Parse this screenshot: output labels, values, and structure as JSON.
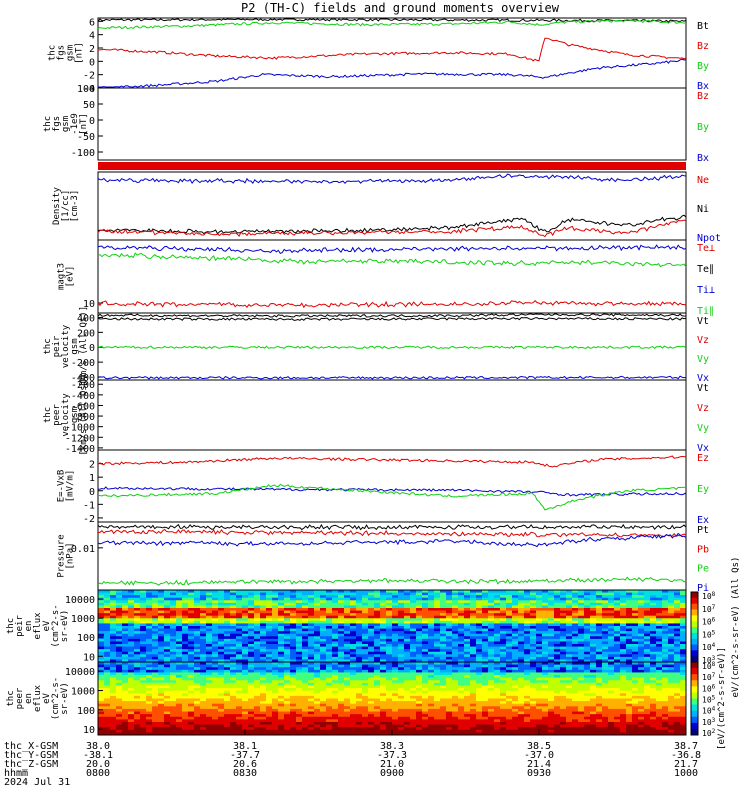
{
  "title": "P2 (TH-C) fields and ground moments overview",
  "colors": {
    "black": "#000000",
    "red": "#e00000",
    "green": "#10d010",
    "blue": "#0000d0"
  },
  "chart_data": {
    "type": "line",
    "panels": [
      {
        "id": "fgs",
        "ylabel": [
          "thc",
          "fgs",
          "gsm",
          "[nT]"
        ],
        "yticks": [
          "6",
          "4",
          "2",
          "0",
          "-2",
          "-4"
        ],
        "ylim": [
          -4,
          6.5
        ],
        "legend": [
          {
            "label": "Bt",
            "color": "black"
          },
          {
            "label": "Bz",
            "color": "red"
          },
          {
            "label": "By",
            "color": "green"
          },
          {
            "label": "Bx",
            "color": "blue"
          }
        ],
        "series": [
          {
            "color": "black",
            "pts": [
              [
                0,
                6.2
              ],
              [
                0.3,
                6.3
              ],
              [
                0.6,
                6.2
              ],
              [
                0.9,
                6.1
              ],
              [
                1,
                6.0
              ]
            ]
          },
          {
            "color": "green",
            "pts": [
              [
                0,
                5.0
              ],
              [
                0.15,
                5.3
              ],
              [
                0.3,
                5.8
              ],
              [
                0.45,
                5.5
              ],
              [
                0.6,
                5.6
              ],
              [
                0.7,
                5.9
              ],
              [
                0.75,
                5.5
              ],
              [
                0.8,
                5.9
              ],
              [
                0.9,
                6.1
              ],
              [
                1,
                5.8
              ]
            ]
          },
          {
            "color": "red",
            "pts": [
              [
                0,
                1.8
              ],
              [
                0.1,
                1.4
              ],
              [
                0.2,
                0.8
              ],
              [
                0.3,
                0.5
              ],
              [
                0.45,
                1.1
              ],
              [
                0.6,
                1.3
              ],
              [
                0.7,
                1.1
              ],
              [
                0.75,
                0.0
              ],
              [
                0.76,
                3.6
              ],
              [
                0.8,
                2.5
              ],
              [
                0.9,
                1.0
              ],
              [
                1,
                0.4
              ]
            ]
          },
          {
            "color": "blue",
            "pts": [
              [
                0,
                -4.0
              ],
              [
                0.1,
                -3.6
              ],
              [
                0.2,
                -3.0
              ],
              [
                0.28,
                -2.0
              ],
              [
                0.4,
                -2.3
              ],
              [
                0.55,
                -1.9
              ],
              [
                0.7,
                -2.0
              ],
              [
                0.76,
                -2.4
              ],
              [
                0.85,
                -1.0
              ],
              [
                0.95,
                -0.3
              ],
              [
                1,
                0.2
              ]
            ]
          }
        ]
      },
      {
        "id": "fgs-flat",
        "ylabel": [
          "thc",
          "fgs",
          "gsm",
          "-1e9",
          "[nT]"
        ],
        "yticks": [
          "100",
          "50",
          "0",
          "-50",
          "-100"
        ],
        "ylim": [
          -125,
          100
        ],
        "legend": [
          {
            "label": "Bz",
            "color": "red"
          },
          {
            "label": "By",
            "color": "green"
          },
          {
            "label": "Bx",
            "color": "blue"
          }
        ],
        "series": []
      },
      {
        "id": "density",
        "ylabel": [
          "Density",
          "[1/cc]",
          "[cm-3]"
        ],
        "yticks": [],
        "ylim": [
          0,
          1
        ],
        "legend": [
          {
            "label": "Ne",
            "color": "red"
          },
          {
            "label": "Ni",
            "color": "black"
          },
          {
            "label": "Npot",
            "color": "blue"
          }
        ],
        "series": [
          {
            "color": "blue",
            "pts": [
              [
                0,
                0.88
              ],
              [
                0.2,
                0.87
              ],
              [
                0.4,
                0.86
              ],
              [
                0.6,
                0.88
              ],
              [
                0.7,
                0.95
              ],
              [
                0.8,
                0.92
              ],
              [
                0.9,
                0.88
              ],
              [
                1,
                0.94
              ]
            ]
          },
          {
            "color": "black",
            "pts": [
              [
                0,
                0.15
              ],
              [
                0.2,
                0.12
              ],
              [
                0.4,
                0.13
              ],
              [
                0.6,
                0.18
              ],
              [
                0.72,
                0.32
              ],
              [
                0.76,
                0.12
              ],
              [
                0.8,
                0.3
              ],
              [
                0.9,
                0.22
              ],
              [
                1,
                0.35
              ]
            ]
          },
          {
            "color": "red",
            "pts": [
              [
                0,
                0.13
              ],
              [
                0.2,
                0.09
              ],
              [
                0.4,
                0.1
              ],
              [
                0.6,
                0.12
              ],
              [
                0.72,
                0.2
              ],
              [
                0.76,
                0.06
              ],
              [
                0.8,
                0.18
              ],
              [
                0.9,
                0.1
              ],
              [
                1,
                0.3
              ]
            ]
          }
        ]
      },
      {
        "id": "temperature",
        "ylabel": [
          "magt3",
          "[eV]"
        ],
        "yticks": [
          "10"
        ],
        "ylim": [
          0,
          1
        ],
        "legend": [
          {
            "label": "Te⊥",
            "color": "red"
          },
          {
            "label": "Te∥",
            "color": "black"
          },
          {
            "label": "Ti⊥",
            "color": "blue"
          },
          {
            "label": "Ti∥",
            "color": "green"
          }
        ],
        "series": [
          {
            "color": "blue",
            "pts": [
              [
                0,
                0.9
              ],
              [
                0.3,
                0.85
              ],
              [
                0.6,
                0.88
              ],
              [
                1,
                0.9
              ]
            ]
          },
          {
            "color": "green",
            "pts": [
              [
                0,
                0.8
              ],
              [
                0.2,
                0.75
              ],
              [
                0.35,
                0.7
              ],
              [
                0.5,
                0.72
              ],
              [
                0.7,
                0.68
              ],
              [
                0.85,
                0.7
              ],
              [
                1,
                0.65
              ]
            ]
          },
          {
            "color": "red",
            "pts": [
              [
                0,
                0.13
              ],
              [
                0.3,
                0.11
              ],
              [
                0.6,
                0.12
              ],
              [
                0.75,
                0.14
              ],
              [
                1,
                0.12
              ]
            ]
          }
        ]
      },
      {
        "id": "peir-velocity",
        "ylabel": [
          "thc",
          "peir",
          "velocity",
          "gsm",
          "[km/s (All Qs)]"
        ],
        "yticks": [
          "400",
          "200",
          "0",
          "-200",
          "-400"
        ],
        "ylim": [
          -440,
          460
        ],
        "legend": [
          {
            "label": "Vt",
            "color": "black"
          },
          {
            "label": "Vz",
            "color": "red"
          },
          {
            "label": "Vy",
            "color": "green"
          },
          {
            "label": "Vx",
            "color": "blue"
          }
        ],
        "series": [
          {
            "color": "black",
            "pts": [
              [
                0,
                430
              ],
              [
                0.3,
                420
              ],
              [
                0.6,
                425
              ],
              [
                0.75,
                440
              ],
              [
                1,
                430
              ]
            ]
          },
          {
            "color": "black",
            "pts": [
              [
                0,
                380
              ],
              [
                0.4,
                375
              ],
              [
                0.7,
                385
              ],
              [
                1,
                380
              ]
            ]
          },
          {
            "color": "green",
            "pts": [
              [
                0,
                0
              ],
              [
                1,
                0
              ]
            ]
          },
          {
            "color": "blue",
            "pts": [
              [
                0,
                -410
              ],
              [
                0.5,
                -410
              ],
              [
                1,
                -405
              ]
            ]
          }
        ]
      },
      {
        "id": "peer-velocity",
        "ylabel": [
          "thc",
          "peer",
          "velocity",
          "gsm",
          "[km/s (All Qs)]"
        ],
        "yticks": [
          "-200",
          "-400",
          "-600",
          "-800",
          "-1000",
          "-1200",
          "-1400"
        ],
        "ylim": [
          -1440,
          -120
        ],
        "legend": [
          {
            "label": "Vt",
            "color": "black"
          },
          {
            "label": "Vz",
            "color": "red"
          },
          {
            "label": "Vy",
            "color": "green"
          },
          {
            "label": "Vx",
            "color": "blue"
          }
        ],
        "series": []
      },
      {
        "id": "efield",
        "ylabel": [
          "E=-VxB",
          "[mV/m]"
        ],
        "yticks": [
          "2",
          "1",
          "0",
          "-1",
          "-2"
        ],
        "ylim": [
          -2.3,
          3.0
        ],
        "legend": [
          {
            "label": "Ez",
            "color": "red"
          },
          {
            "label": "Ey",
            "color": "green"
          },
          {
            "label": "Ex",
            "color": "blue"
          }
        ],
        "series": [
          {
            "color": "red",
            "pts": [
              [
                0,
                2.0
              ],
              [
                0.15,
                2.1
              ],
              [
                0.3,
                2.4
              ],
              [
                0.45,
                2.3
              ],
              [
                0.6,
                2.2
              ],
              [
                0.74,
                2.1
              ],
              [
                0.77,
                1.8
              ],
              [
                0.85,
                2.3
              ],
              [
                1,
                2.5
              ]
            ]
          },
          {
            "color": "blue",
            "pts": [
              [
                0,
                0.2
              ],
              [
                0.3,
                0.1
              ],
              [
                0.6,
                0.05
              ],
              [
                0.75,
                -0.1
              ],
              [
                0.8,
                -0.3
              ],
              [
                1,
                -0.2
              ]
            ]
          },
          {
            "color": "green",
            "pts": [
              [
                0,
                -0.4
              ],
              [
                0.2,
                -0.2
              ],
              [
                0.3,
                0.4
              ],
              [
                0.45,
                0.0
              ],
              [
                0.6,
                -0.4
              ],
              [
                0.74,
                -0.2
              ],
              [
                0.76,
                -1.4
              ],
              [
                0.82,
                -0.6
              ],
              [
                0.9,
                0.0
              ],
              [
                1,
                0.2
              ]
            ]
          }
        ]
      },
      {
        "id": "pressure",
        "ylabel": [
          "Pressure",
          "[nPa]"
        ],
        "yticks": [
          "0.01"
        ],
        "ylim": [
          0,
          1
        ],
        "legend": [
          {
            "label": "Pt",
            "color": "black"
          },
          {
            "label": "Pb",
            "color": "red"
          },
          {
            "label": "Pe",
            "color": "green"
          },
          {
            "label": "Pi",
            "color": "blue"
          }
        ],
        "series": [
          {
            "color": "black",
            "pts": [
              [
                0,
                0.93
              ],
              [
                0.5,
                0.92
              ],
              [
                1,
                0.93
              ]
            ]
          },
          {
            "color": "red",
            "pts": [
              [
                0,
                0.86
              ],
              [
                0.4,
                0.84
              ],
              [
                0.7,
                0.82
              ],
              [
                1,
                0.8
              ]
            ]
          },
          {
            "color": "blue",
            "pts": [
              [
                0,
                0.7
              ],
              [
                0.3,
                0.68
              ],
              [
                0.6,
                0.72
              ],
              [
                0.75,
                0.66
              ],
              [
                0.85,
                0.75
              ],
              [
                1,
                0.8
              ]
            ]
          },
          {
            "color": "green",
            "pts": [
              [
                0,
                0.1
              ],
              [
                0.3,
                0.12
              ],
              [
                0.5,
                0.14
              ],
              [
                0.7,
                0.12
              ],
              [
                0.9,
                0.16
              ],
              [
                1,
                0.14
              ]
            ]
          }
        ]
      }
    ],
    "spectrograms": [
      {
        "id": "peir-eflux",
        "ylabel": [
          "thc",
          "peir",
          "en",
          "eflux",
          "eV",
          "(cm^2-s-",
          "sr-eV)"
        ],
        "yticks": [
          "10000",
          "1000",
          "100",
          "10"
        ],
        "ylim": [
          5,
          30000
        ],
        "colorbar_ticks": [
          "10^8",
          "10^7",
          "10^6",
          "10^5",
          "10^4",
          "10^3"
        ],
        "colorbar_label": "eV/(cm^2-s-sr-eV) (All Qs)"
      },
      {
        "id": "peer-eflux",
        "ylabel": [
          "thc",
          "peer",
          "en",
          "eflux",
          "eV",
          "(cm^2-s-",
          "sr-eV)"
        ],
        "yticks": [
          "10000",
          "1000",
          "100",
          "10"
        ],
        "ylim": [
          5,
          30000
        ],
        "colorbar_ticks": [
          "10^8",
          "10^7",
          "10^6",
          "10^5",
          "10^4",
          "10^3",
          "10^2"
        ],
        "colorbar_label": "[eV/(cm^2-s-sr-eV)]"
      }
    ],
    "x_axis": {
      "row_labels": [
        "thc_X-GSM",
        "thc_Y-GSM",
        "thc_Z-GSM",
        "hhmm",
        "2024 Jul 31"
      ],
      "ticks": [
        {
          "x": 0.0,
          "values": [
            "38.0",
            "-38.1",
            "20.0",
            "0800"
          ]
        },
        {
          "x": 0.25,
          "values": [
            "38.1",
            "-37.7",
            "20.6",
            "0830"
          ]
        },
        {
          "x": 0.5,
          "values": [
            "38.3",
            "-37.3",
            "21.0",
            "0900"
          ]
        },
        {
          "x": 0.75,
          "values": [
            "38.5",
            "-37.0",
            "21.4",
            "0930"
          ]
        },
        {
          "x": 1.0,
          "values": [
            "38.7",
            "-36.8",
            "21.7",
            "1000"
          ]
        }
      ]
    }
  }
}
